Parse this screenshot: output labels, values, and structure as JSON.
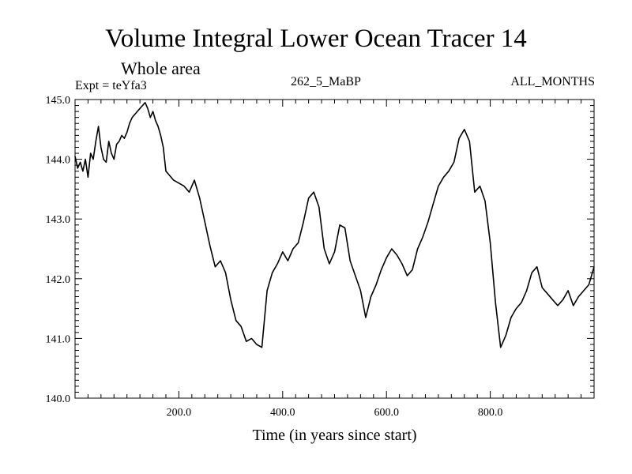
{
  "header": {
    "title": "Volume Integral Lower Ocean Tracer 14",
    "subtitle": "Whole area",
    "experiment": "Expt = teYfa3",
    "run_label": "262_5_MaBP",
    "months_label": "ALL_MONTHS"
  },
  "chart_data": {
    "type": "line",
    "title": "Volume Integral Lower Ocean Tracer 14",
    "subtitle": "Whole area",
    "xlabel": "Time (in years since start)",
    "ylabel": "",
    "xlim": [
      0,
      1000
    ],
    "ylim": [
      140.0,
      145.0
    ],
    "x_ticks": [
      200,
      400,
      600,
      800
    ],
    "x_tick_labels": [
      "200.0",
      "400.0",
      "600.0",
      "800.0"
    ],
    "y_ticks": [
      140,
      141,
      142,
      143,
      144,
      145
    ],
    "y_tick_labels": [
      "140.0",
      "141.0",
      "142.0",
      "143.0",
      "144.0",
      "145.0"
    ],
    "series": [
      {
        "name": "Tracer 14",
        "x": [
          0,
          5,
          10,
          15,
          20,
          25,
          30,
          35,
          40,
          45,
          50,
          55,
          60,
          65,
          70,
          75,
          80,
          85,
          90,
          95,
          100,
          105,
          110,
          115,
          120,
          125,
          130,
          135,
          140,
          145,
          150,
          155,
          160,
          165,
          170,
          175,
          180,
          190,
          200,
          210,
          220,
          230,
          240,
          250,
          260,
          270,
          280,
          290,
          300,
          310,
          320,
          330,
          340,
          350,
          360,
          370,
          380,
          390,
          400,
          410,
          420,
          430,
          440,
          450,
          460,
          470,
          480,
          490,
          500,
          510,
          520,
          530,
          540,
          550,
          560,
          570,
          580,
          590,
          600,
          610,
          620,
          630,
          640,
          650,
          660,
          670,
          680,
          690,
          700,
          710,
          720,
          730,
          740,
          750,
          760,
          770,
          780,
          790,
          800,
          810,
          820,
          830,
          840,
          850,
          860,
          870,
          880,
          890,
          900,
          910,
          920,
          930,
          940,
          950,
          960,
          970,
          980,
          990,
          1000
        ],
        "values": [
          144.05,
          143.85,
          143.95,
          143.8,
          144.0,
          143.7,
          144.1,
          144.0,
          144.3,
          144.55,
          144.2,
          144.0,
          143.95,
          144.3,
          144.1,
          144.0,
          144.25,
          144.3,
          144.4,
          144.35,
          144.45,
          144.6,
          144.7,
          144.75,
          144.8,
          144.85,
          144.9,
          144.95,
          144.85,
          144.7,
          144.8,
          144.65,
          144.55,
          144.4,
          144.2,
          143.8,
          143.75,
          143.65,
          143.6,
          143.55,
          143.45,
          143.65,
          143.35,
          142.95,
          142.55,
          142.2,
          142.3,
          142.1,
          141.65,
          141.3,
          141.2,
          140.95,
          141.0,
          140.9,
          140.85,
          141.8,
          142.1,
          142.25,
          142.45,
          142.3,
          142.5,
          142.6,
          142.95,
          143.35,
          143.45,
          143.2,
          142.5,
          142.25,
          142.45,
          142.9,
          142.85,
          142.3,
          142.05,
          141.8,
          141.35,
          141.7,
          141.9,
          142.15,
          142.35,
          142.5,
          142.4,
          142.25,
          142.05,
          142.15,
          142.5,
          142.7,
          142.95,
          143.25,
          143.55,
          143.7,
          143.8,
          143.95,
          144.35,
          144.5,
          144.3,
          143.45,
          143.55,
          143.3,
          142.6,
          141.6,
          140.85,
          141.05,
          141.35,
          141.5,
          141.6,
          141.8,
          142.1,
          142.2,
          141.85,
          141.75,
          141.65,
          141.55,
          141.65,
          141.8,
          141.55,
          141.7,
          141.8,
          141.9,
          142.2
        ],
        "color": "#000000"
      }
    ],
    "grid": false
  }
}
